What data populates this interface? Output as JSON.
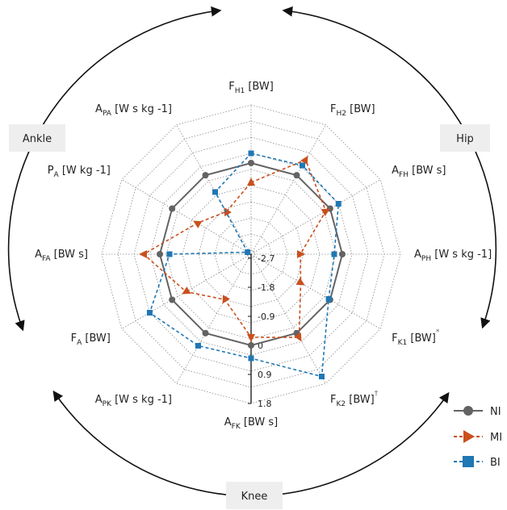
{
  "chart_data": {
    "type": "radar",
    "axes": [
      {
        "main": "F",
        "sub": "H1",
        "unit": " [BW]",
        "mark": ""
      },
      {
        "main": "F",
        "sub": "H2",
        "unit": " [BW]",
        "mark": ""
      },
      {
        "main": "A",
        "sub": "FH",
        "unit": " [BW s]",
        "mark": ""
      },
      {
        "main": "A",
        "sub": "PH",
        "unit": " [W s kg -1]",
        "mark": ""
      },
      {
        "main": "F",
        "sub": "K1",
        "unit": " [BW]",
        "mark": "*"
      },
      {
        "main": "F",
        "sub": "K2",
        "unit": " [BW]",
        "mark": "†"
      },
      {
        "main": "A",
        "sub": "FK",
        "unit": " [BW s]",
        "mark": ""
      },
      {
        "main": "A",
        "sub": "PK",
        "unit": " [W s kg -1]",
        "mark": ""
      },
      {
        "main": "F",
        "sub": "A",
        "unit": " [BW]",
        "mark": ""
      },
      {
        "main": "A",
        "sub": "FA",
        "unit": " [BW s]",
        "mark": ""
      },
      {
        "main": "P",
        "sub": "A",
        "unit": "  [W kg -1]",
        "mark": ""
      },
      {
        "main": "A",
        "sub": "PA",
        "unit": " [W s kg -1]",
        "mark": ""
      }
    ],
    "radial_range": [
      -2.7,
      1.8
    ],
    "radial_ticks": [
      "-2.7",
      "-1.8",
      "-0.9",
      "0",
      "0.9",
      "1.8"
    ],
    "radial_tick_values": [
      -2.7,
      -1.8,
      -0.9,
      0,
      0.9,
      1.8
    ],
    "grid_levels": [
      -2.7,
      -1.8,
      -0.9,
      0,
      0.9,
      1.8
    ],
    "grid": true,
    "legend_position": "bottom-right",
    "series": [
      {
        "name": "NI",
        "color": "#636363",
        "marker": "circle",
        "line": "solid",
        "values": [
          0,
          0,
          0,
          0,
          0,
          0,
          0,
          0,
          0,
          0,
          0,
          0
        ]
      },
      {
        "name": "MI",
        "color": "#c9501e",
        "marker": "triangle",
        "line": "dashed",
        "values": [
          -0.6,
          0.55,
          -0.15,
          -1.3,
          -1.05,
          0.15,
          -0.25,
          -1.2,
          -0.5,
          0.5,
          -0.9,
          -1.3
        ]
      },
      {
        "name": "BI",
        "color": "#1f77b4",
        "marker": "square",
        "line": "dashed",
        "values": [
          0.3,
          0.35,
          0.3,
          -0.25,
          -0.05,
          1.55,
          0.4,
          0.45,
          0.8,
          -0.3,
          -2.7,
          -0.6
        ]
      }
    ],
    "groups": [
      {
        "label": "Hip"
      },
      {
        "label": "Knee"
      },
      {
        "label": "Ankle"
      }
    ]
  },
  "icons": {
    "arrows": "circular-arrow-icon"
  }
}
